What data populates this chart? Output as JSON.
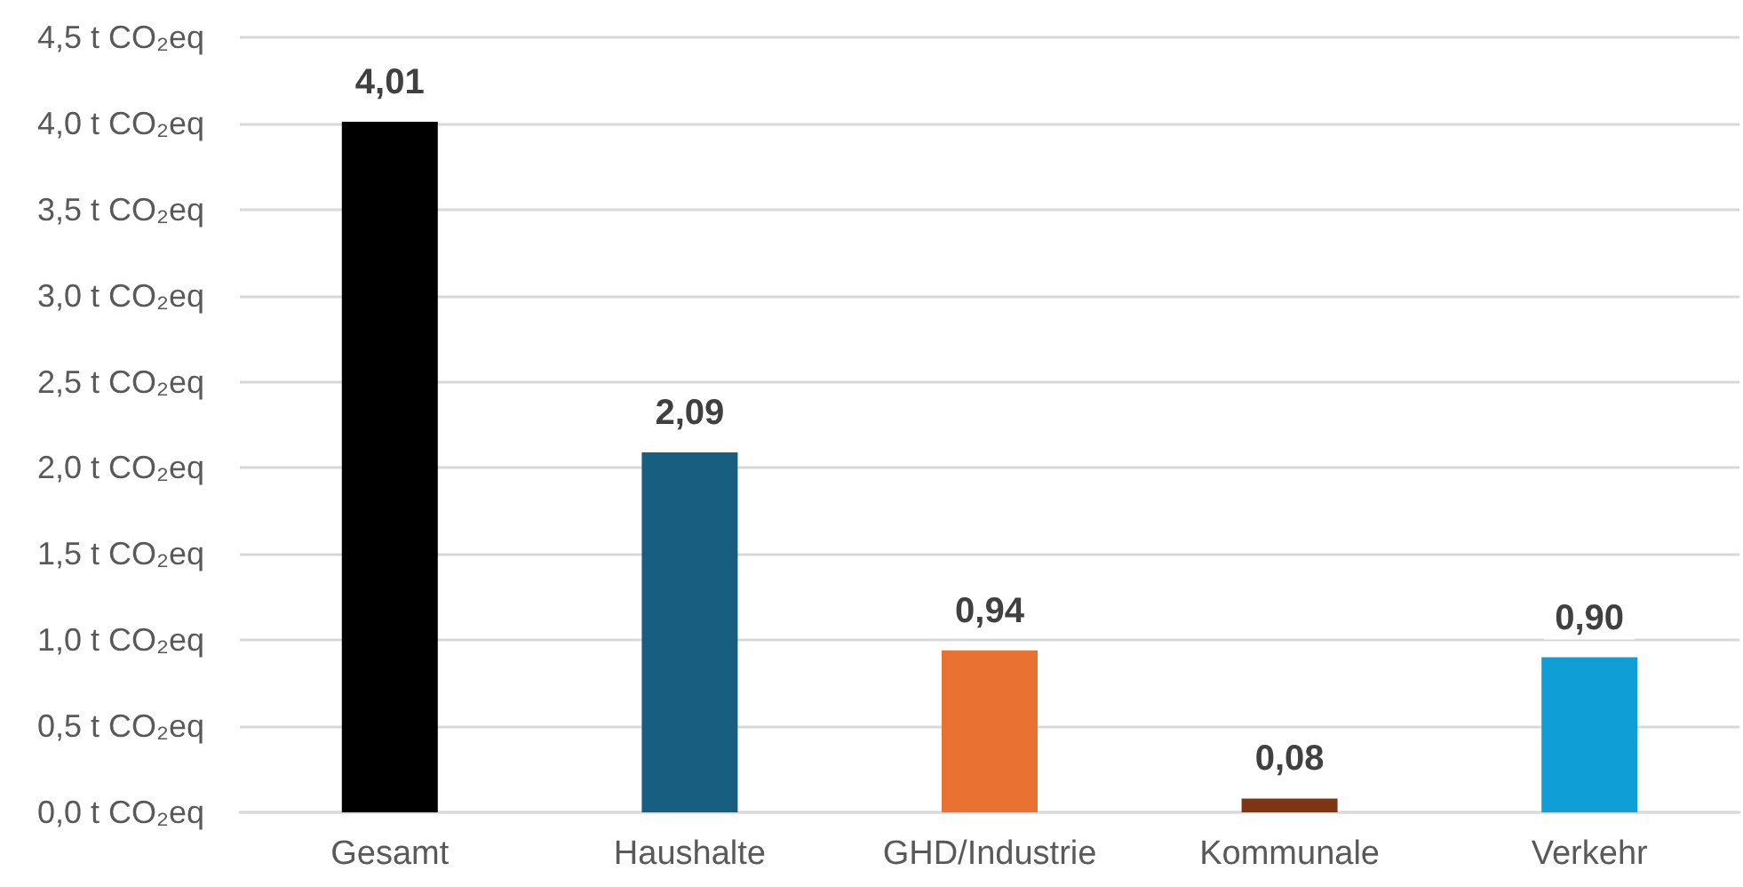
{
  "chart_data": {
    "type": "bar",
    "categories": [
      "Gesamt",
      "Haushalte",
      "GHD/Industrie",
      "Kommunale",
      "Verkehr"
    ],
    "values": [
      4.01,
      2.09,
      0.94,
      0.08,
      0.9
    ],
    "colors": [
      "#000000",
      "#175e80",
      "#e97132",
      "#7e3512",
      "#0f9ed5"
    ],
    "value_labels": [
      "4,01",
      "2,09",
      "0,94",
      "0,08",
      "0,90"
    ],
    "ylim": [
      0,
      4.5
    ],
    "yticks": [
      {
        "value": 0,
        "label": "0,0 t CO₂eq"
      },
      {
        "value": 0.5,
        "label": "0,5 t CO₂eq"
      },
      {
        "value": 1,
        "label": "1,0 t CO₂eq"
      },
      {
        "value": 1.5,
        "label": "1,5 t CO₂eq"
      },
      {
        "value": 2,
        "label": "2,0 t CO₂eq"
      },
      {
        "value": 2.5,
        "label": "2,5 t CO₂eq"
      },
      {
        "value": 3,
        "label": "3,0 t CO₂eq"
      },
      {
        "value": 3.5,
        "label": "3,5 t CO₂eq"
      },
      {
        "value": 4,
        "label": "4,0 t CO₂eq"
      },
      {
        "value": 4.5,
        "label": "4,5 t CO₂eq"
      }
    ],
    "grid": "y"
  }
}
